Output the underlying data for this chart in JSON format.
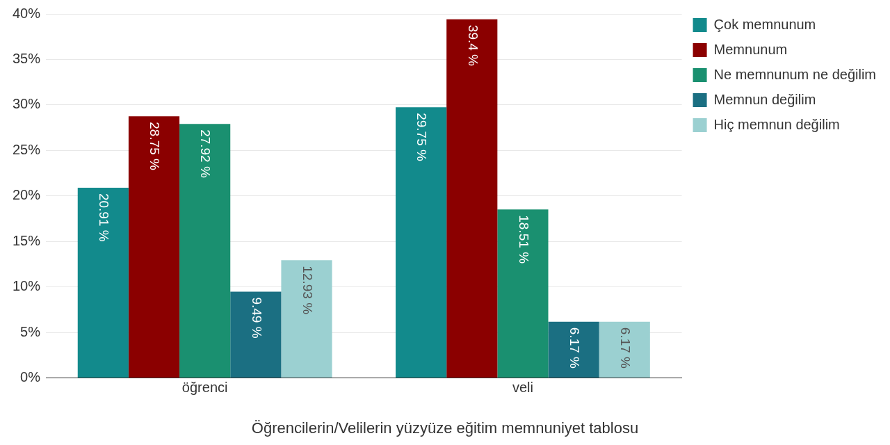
{
  "chart_data": {
    "type": "bar",
    "title": "Öğrencilerin/Velilerin yüzyüze eğitim memnuniyet tablosu",
    "categories": [
      "öğrenci",
      "veli"
    ],
    "series": [
      {
        "name": "Çok memnunum",
        "color": "#128a8c",
        "values": [
          20.91,
          29.75
        ],
        "value_labels": [
          "20.91 %",
          "29.75 %"
        ]
      },
      {
        "name": "Memnunum",
        "color": "#8b0000",
        "values": [
          28.75,
          39.4
        ],
        "value_labels": [
          "28.75 %",
          "39.4 %"
        ]
      },
      {
        "name": "Ne memnunum ne değilim",
        "color": "#1a9070",
        "values": [
          27.92,
          18.51
        ],
        "value_labels": [
          "27.92 %",
          "18.51 %"
        ]
      },
      {
        "name": "Memnun değilim",
        "color": "#1b6f82",
        "values": [
          9.49,
          6.17
        ],
        "value_labels": [
          "9.49 %",
          "6.17 %"
        ]
      },
      {
        "name": "Hiç memnun değilim",
        "color": "#9bd0d1",
        "values": [
          12.93,
          6.17
        ],
        "value_labels": [
          "12.93 %",
          "6.17 %"
        ]
      }
    ],
    "ylim": [
      0,
      40
    ],
    "yticks": [
      {
        "value": 0,
        "label": "0%"
      },
      {
        "value": 5,
        "label": "5%"
      },
      {
        "value": 10,
        "label": "10%"
      },
      {
        "value": 15,
        "label": "15%"
      },
      {
        "value": 20,
        "label": "20%"
      },
      {
        "value": 25,
        "label": "25%"
      },
      {
        "value": 30,
        "label": "30%"
      },
      {
        "value": 35,
        "label": "35%"
      },
      {
        "value": 40,
        "label": "40%"
      }
    ],
    "grid": "y",
    "legend": "top right"
  }
}
